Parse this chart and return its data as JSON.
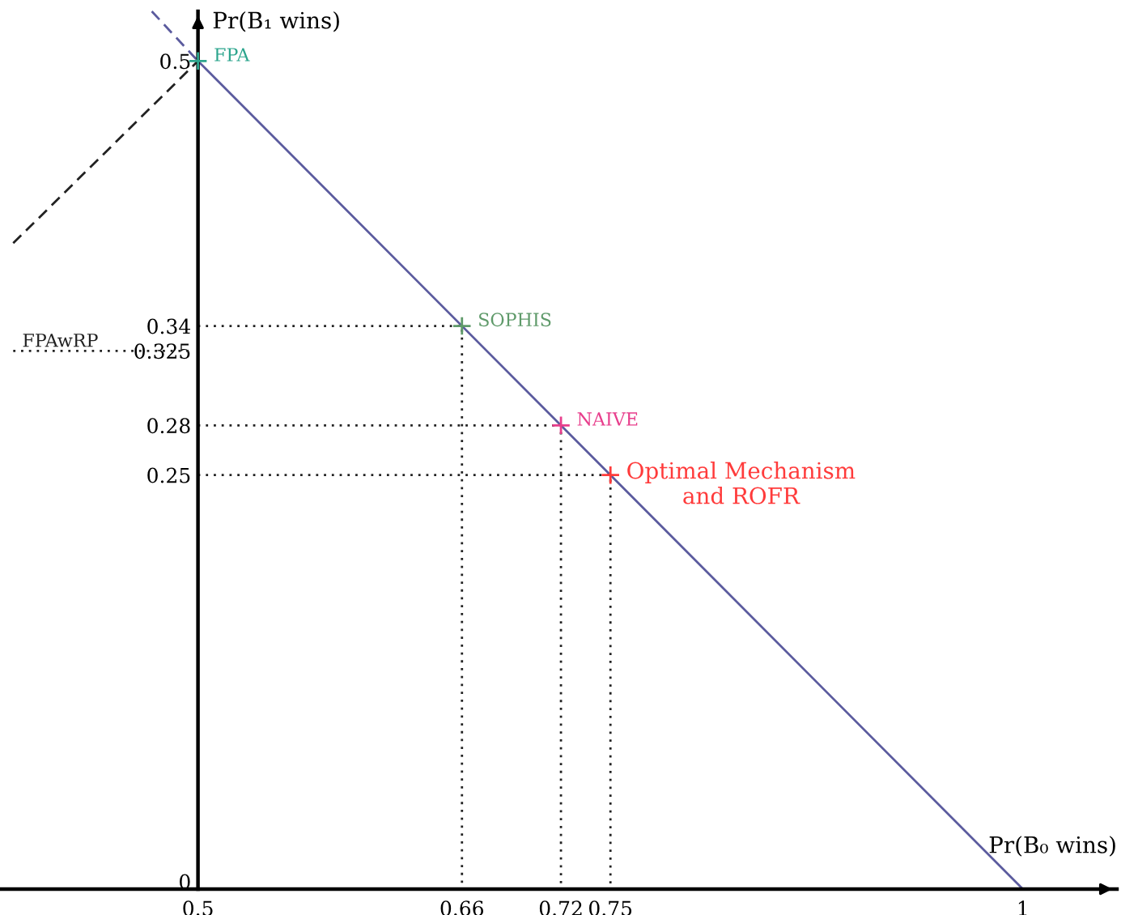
{
  "chart_data": {
    "type": "line",
    "xlabel": "Pr(B₀ wins)",
    "ylabel": "Pr(B₁ wins)",
    "xlim": [
      0.38,
      1.057
    ],
    "ylim": [
      0,
      0.53
    ],
    "xticks": [
      0.5,
      0.66,
      0.72,
      0.75,
      1
    ],
    "yticks": [
      0,
      0.25,
      0.28,
      0.325,
      0.34,
      0.5
    ],
    "grid": false,
    "legend": false,
    "series": [
      {
        "color": "#5b5b9e",
        "line_style": "solid",
        "x": [
          0.5,
          1
        ],
        "values": [
          0.5,
          0
        ]
      },
      {
        "color": "#5b5b9e",
        "line_style": "dashed",
        "x": [
          0.472,
          0.5
        ],
        "values": [
          0.53,
          0.5
        ]
      },
      {
        "name": "FPAwRP",
        "color": "#222222",
        "line_style": "dashed",
        "x": [
          0.388,
          0.5
        ],
        "values": [
          0.39,
          0.5
        ]
      },
      {
        "type": "line",
        "color": "#222222",
        "line_style": "dotted",
        "x": [
          0.388,
          0.496
        ],
        "values": [
          0.325,
          0.325
        ]
      },
      {
        "type": "line",
        "color": "#222222",
        "line_style": "dotted",
        "x": [
          0.5,
          0.66,
          0.66
        ],
        "values": [
          0.34,
          0.34,
          0
        ]
      },
      {
        "type": "line",
        "color": "#222222",
        "line_style": "dotted",
        "x": [
          0.5,
          0.72,
          0.72
        ],
        "values": [
          0.28,
          0.28,
          0
        ]
      },
      {
        "type": "line",
        "color": "#222222",
        "line_style": "dotted",
        "x": [
          0.5,
          0.75,
          0.75
        ],
        "values": [
          0.25,
          0.25,
          0
        ]
      },
      {
        "type": "scatter",
        "name": "FPA",
        "color": "#2ca58d",
        "marker": "cross",
        "x": [
          0.5
        ],
        "values": [
          0.5
        ]
      },
      {
        "type": "scatter",
        "name": "SOPHIS",
        "color": "#5f9a6a",
        "marker": "cross",
        "x": [
          0.66
        ],
        "values": [
          0.34
        ]
      },
      {
        "type": "scatter",
        "name": "NAIVE",
        "color": "#e83e8c",
        "marker": "cross",
        "x": [
          0.72
        ],
        "values": [
          0.28
        ]
      },
      {
        "type": "scatter",
        "name": "Optimal Mechanism\nand ROFR",
        "color": "#ff3b3b",
        "marker": "cross",
        "x": [
          0.75
        ],
        "values": [
          0.25
        ]
      }
    ]
  }
}
